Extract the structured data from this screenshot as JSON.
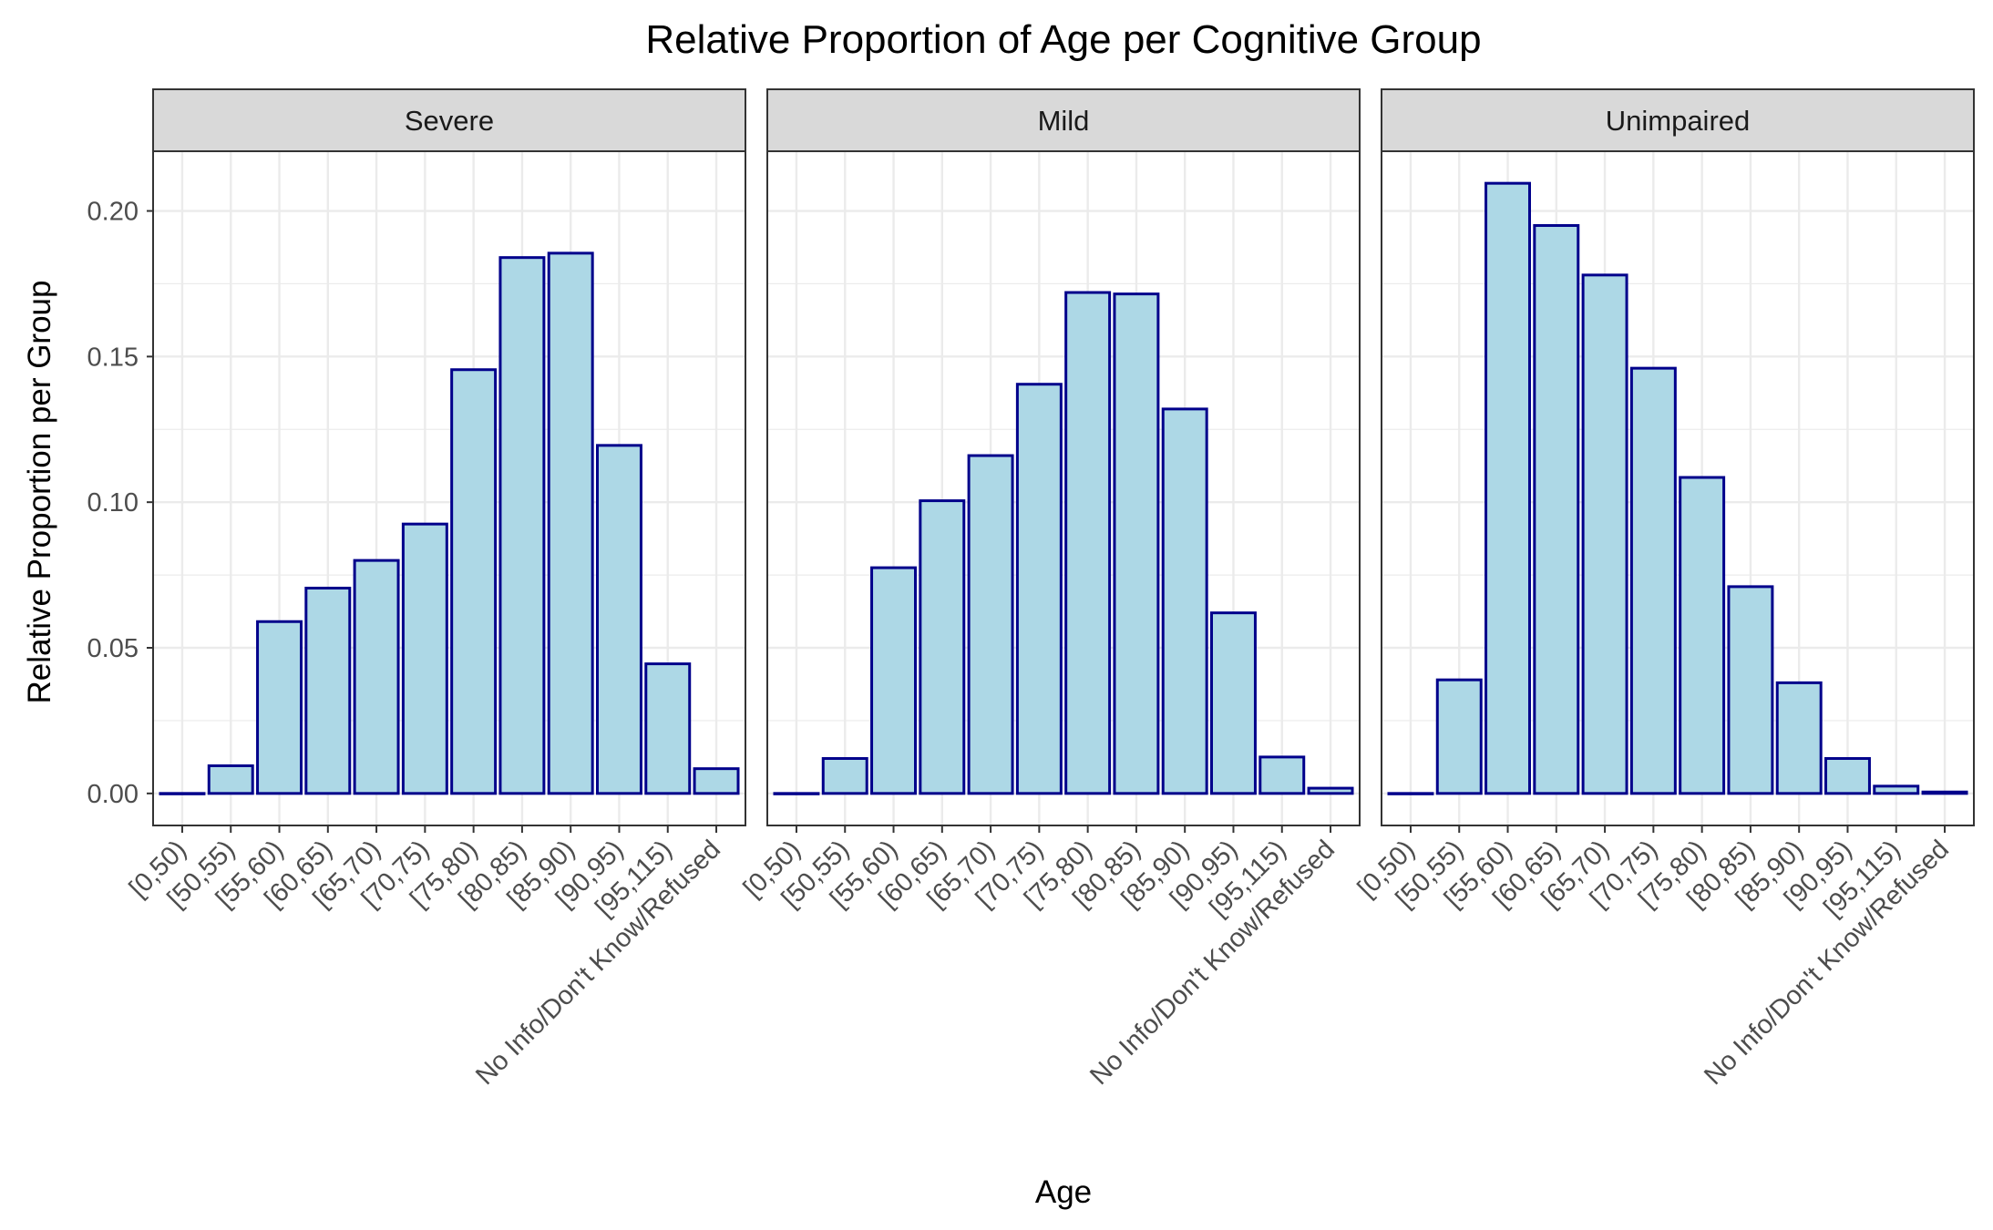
{
  "chart_data": {
    "type": "bar",
    "title": "Relative Proportion of Age per Cognitive Group",
    "xlabel": "Age",
    "ylabel": "Relative Proportion per Group",
    "ylim": [
      -0.011,
      0.2205
    ],
    "yticks": [
      "0.00",
      "0.05",
      "0.10",
      "0.15",
      "0.20"
    ],
    "grid": true,
    "legend": "none",
    "colors": {
      "bar_fill": "#ADD8E6",
      "bar_stroke": "#00008B",
      "strip_fill": "#D9D9D9",
      "grid": "#EBEBEB"
    },
    "categories": [
      "[0,50)",
      "[50,55)",
      "[55,60)",
      "[60,65)",
      "[65,70)",
      "[70,75)",
      "[75,80)",
      "[80,85)",
      "[85,90)",
      "[90,95)",
      "[95,115)",
      "No Info/Don't Know/Refused"
    ],
    "panels": [
      {
        "name": "Severe",
        "values": [
          0.0,
          0.0095,
          0.059,
          0.0705,
          0.08,
          0.0925,
          0.1455,
          0.184,
          0.1855,
          0.1195,
          0.0445,
          0.0085
        ]
      },
      {
        "name": "Mild",
        "values": [
          0.0,
          0.012,
          0.0775,
          0.1005,
          0.116,
          0.1405,
          0.172,
          0.1715,
          0.132,
          0.062,
          0.0125,
          0.0018
        ]
      },
      {
        "name": "Unimpaired",
        "values": [
          0.0,
          0.039,
          0.2095,
          0.195,
          0.178,
          0.146,
          0.1085,
          0.071,
          0.038,
          0.012,
          0.0025,
          0.0005
        ]
      }
    ]
  }
}
